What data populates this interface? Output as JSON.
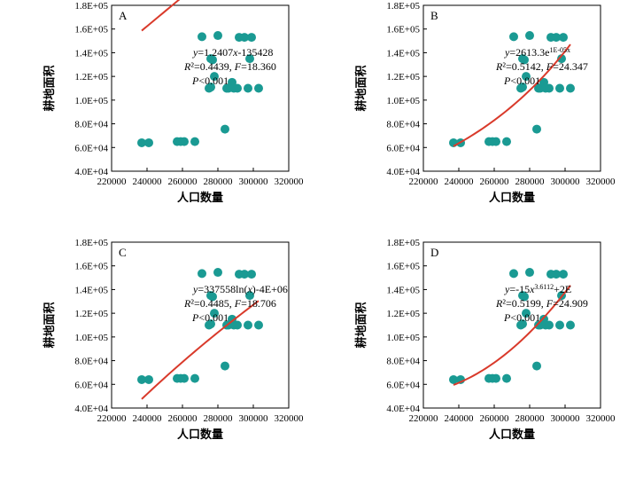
{
  "chart_data": [
    {
      "type": "scatter",
      "panel": "A",
      "xlabel": "人口数量",
      "ylabel": "耕地面积",
      "xlim": [
        220000,
        320000
      ],
      "ylim": [
        40000,
        180000
      ],
      "x_ticks": [
        220000,
        240000,
        260000,
        280000,
        300000,
        320000
      ],
      "x_tick_labels": [
        "220000",
        "240000",
        "260000",
        "280000",
        "300000",
        "320000"
      ],
      "y_ticks": [
        40000,
        60000,
        80000,
        100000,
        120000,
        140000,
        160000,
        180000
      ],
      "y_tick_labels": [
        "4.0E+04",
        "6.0E+04",
        "8.0E+04",
        "1.0E+05",
        "1.2E+05",
        "1.4E+05",
        "1.6E+05",
        "1.8E+05"
      ],
      "annotations": [
        "y=1.2407x-135428",
        "R²=0.4439, F=18.360",
        "P<0.001"
      ],
      "fit": {
        "model": "linear",
        "a": 1.2407,
        "b": -135428,
        "x_range": [
          237000,
          303000
        ]
      },
      "points": [
        [
          237000,
          64000
        ],
        [
          241000,
          64000
        ],
        [
          257000,
          65000
        ],
        [
          259000,
          65000
        ],
        [
          261000,
          65000
        ],
        [
          267000,
          65000
        ],
        [
          271000,
          153500
        ],
        [
          275000,
          110000
        ],
        [
          276000,
          111000
        ],
        [
          276000,
          135000
        ],
        [
          277000,
          134000
        ],
        [
          278000,
          120000
        ],
        [
          280000,
          154500
        ],
        [
          284000,
          75500
        ],
        [
          285000,
          110000
        ],
        [
          286000,
          110000
        ],
        [
          288000,
          115000
        ],
        [
          289000,
          110000
        ],
        [
          291000,
          110000
        ],
        [
          292000,
          153000
        ],
        [
          295000,
          153000
        ],
        [
          297000,
          110000
        ],
        [
          298000,
          135000
        ],
        [
          299000,
          153000
        ],
        [
          303000,
          110000
        ]
      ]
    },
    {
      "type": "scatter",
      "panel": "B",
      "xlabel": "人口数量",
      "ylabel": "耕地面积",
      "xlim": [
        220000,
        320000
      ],
      "ylim": [
        40000,
        180000
      ],
      "x_ticks": [
        220000,
        240000,
        260000,
        280000,
        300000,
        320000
      ],
      "x_tick_labels": [
        "220000",
        "240000",
        "260000",
        "280000",
        "300000",
        "320000"
      ],
      "y_ticks": [
        40000,
        60000,
        80000,
        100000,
        120000,
        140000,
        160000,
        180000
      ],
      "y_tick_labels": [
        "4.0E+04",
        "6.0E+04",
        "8.0E+04",
        "1.0E+05",
        "1.2E+05",
        "1.4E+05",
        "1.6E+05",
        "1.8E+05"
      ],
      "annotations": [
        "y=2613.3e^1E-05x",
        "R²=0.5142, F=24.347",
        "P<0.001"
      ],
      "fit": {
        "model": "exponential",
        "a": 2613.3,
        "b": 1.33e-05,
        "x_range": [
          237000,
          303000
        ]
      },
      "points": [
        [
          237000,
          64000
        ],
        [
          241000,
          64000
        ],
        [
          257000,
          65000
        ],
        [
          259000,
          65000
        ],
        [
          261000,
          65000
        ],
        [
          267000,
          65000
        ],
        [
          271000,
          153500
        ],
        [
          275000,
          110000
        ],
        [
          276000,
          111000
        ],
        [
          276000,
          135000
        ],
        [
          277000,
          134000
        ],
        [
          278000,
          120000
        ],
        [
          280000,
          154500
        ],
        [
          284000,
          75500
        ],
        [
          285000,
          110000
        ],
        [
          286000,
          110000
        ],
        [
          288000,
          115000
        ],
        [
          289000,
          110000
        ],
        [
          291000,
          110000
        ],
        [
          292000,
          153000
        ],
        [
          295000,
          153000
        ],
        [
          297000,
          110000
        ],
        [
          298000,
          135000
        ],
        [
          299000,
          153000
        ],
        [
          303000,
          110000
        ]
      ]
    },
    {
      "type": "scatter",
      "panel": "C",
      "xlabel": "人口数量",
      "ylabel": "耕地面积",
      "xlim": [
        220000,
        320000
      ],
      "ylim": [
        40000,
        180000
      ],
      "x_ticks": [
        220000,
        240000,
        260000,
        280000,
        300000,
        320000
      ],
      "x_tick_labels": [
        "220000",
        "240000",
        "260000",
        "280000",
        "300000",
        "320000"
      ],
      "y_ticks": [
        40000,
        60000,
        80000,
        100000,
        120000,
        140000,
        160000,
        180000
      ],
      "y_tick_labels": [
        "4.0E+04",
        "6.0E+04",
        "8.0E+04",
        "1.0E+05",
        "1.2E+05",
        "1.4E+05",
        "1.6E+05",
        "1.8E+05"
      ],
      "annotations": [
        "y=337558ln(x)-4E+06",
        "R²=0.4485, F=18.706",
        "P<0.001"
      ],
      "fit": {
        "model": "logarithmic",
        "a": 337558,
        "b": -4130000,
        "x_range": [
          237000,
          303000
        ]
      },
      "points": [
        [
          237000,
          64000
        ],
        [
          241000,
          64000
        ],
        [
          257000,
          65000
        ],
        [
          259000,
          65000
        ],
        [
          261000,
          65000
        ],
        [
          267000,
          65000
        ],
        [
          271000,
          153500
        ],
        [
          275000,
          110000
        ],
        [
          276000,
          111000
        ],
        [
          276000,
          135000
        ],
        [
          277000,
          134000
        ],
        [
          278000,
          120000
        ],
        [
          280000,
          154500
        ],
        [
          284000,
          75500
        ],
        [
          285000,
          110000
        ],
        [
          286000,
          110000
        ],
        [
          288000,
          115000
        ],
        [
          289000,
          110000
        ],
        [
          291000,
          110000
        ],
        [
          292000,
          153000
        ],
        [
          295000,
          153000
        ],
        [
          297000,
          110000
        ],
        [
          298000,
          135000
        ],
        [
          299000,
          153000
        ],
        [
          303000,
          110000
        ]
      ]
    },
    {
      "type": "scatter",
      "panel": "D",
      "xlabel": "人口数量",
      "ylabel": "耕地面积",
      "xlim": [
        220000,
        320000
      ],
      "ylim": [
        40000,
        180000
      ],
      "x_ticks": [
        220000,
        240000,
        260000,
        280000,
        300000,
        320000
      ],
      "x_tick_labels": [
        "220000",
        "240000",
        "260000",
        "280000",
        "300000",
        "320000"
      ],
      "y_ticks": [
        40000,
        60000,
        80000,
        100000,
        120000,
        140000,
        160000,
        180000
      ],
      "y_tick_labels": [
        "4.0E+04",
        "6.0E+04",
        "8.0E+04",
        "1.0E+05",
        "1.2E+05",
        "1.4E+05",
        "1.6E+05",
        "1.8E+05"
      ],
      "annotations": [
        "y=-15x^3.6112+2E",
        "R²=0.5199, F=24.909",
        "P<0.001"
      ],
      "fit": {
        "model": "quadratic-through-points",
        "anchors": [
          [
            237000,
            59500
          ],
          [
            270000,
            90000
          ],
          [
            303000,
            143500
          ]
        ],
        "x_range": [
          237000,
          303000
        ]
      },
      "points": [
        [
          237000,
          64000
        ],
        [
          241000,
          64000
        ],
        [
          257000,
          65000
        ],
        [
          259000,
          65000
        ],
        [
          261000,
          65000
        ],
        [
          267000,
          65000
        ],
        [
          271000,
          153500
        ],
        [
          275000,
          110000
        ],
        [
          276000,
          111000
        ],
        [
          276000,
          135000
        ],
        [
          277000,
          134000
        ],
        [
          278000,
          120000
        ],
        [
          280000,
          154500
        ],
        [
          284000,
          75500
        ],
        [
          285000,
          110000
        ],
        [
          286000,
          110000
        ],
        [
          288000,
          115000
        ],
        [
          289000,
          110000
        ],
        [
          291000,
          110000
        ],
        [
          292000,
          153000
        ],
        [
          295000,
          153000
        ],
        [
          297000,
          110000
        ],
        [
          298000,
          135000
        ],
        [
          299000,
          153000
        ],
        [
          303000,
          110000
        ]
      ]
    }
  ],
  "colors": {
    "points": "#1a9a93",
    "fit_line": "#d93a2b",
    "axes": "#000000"
  }
}
